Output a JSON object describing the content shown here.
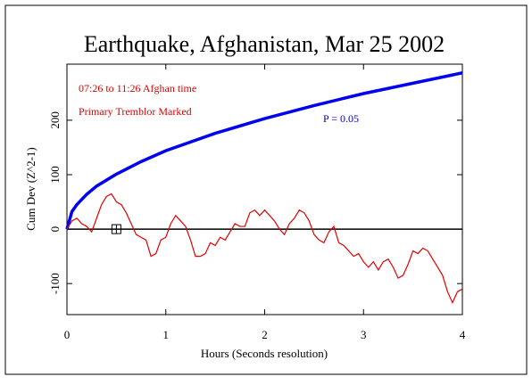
{
  "chart_data": {
    "type": "line",
    "title": "Earthquake, Afghanistan, Mar 25 2002",
    "x_label": "Hours (Seconds resolution)",
    "y_label": "Cum Dev (Z^2-1)",
    "annotations": [
      {
        "text": "07:26 to 11:26 Afghan time",
        "color": "#e00000"
      },
      {
        "text": "Primary Tremblor Marked",
        "color": "#e00000"
      },
      {
        "text": "P = 0.05",
        "color": "#0000cc"
      }
    ],
    "xlim": [
      0,
      4
    ],
    "xticks": [
      0,
      1,
      2,
      3,
      4
    ],
    "ylim": [
      -157,
      303
    ],
    "yticks": [
      -100,
      0,
      100,
      200
    ],
    "reference_line": 0,
    "marker": {
      "x": 0.5,
      "y": 0
    },
    "series": [
      {
        "color": "#0000ee",
        "x": [
          0,
          0.05,
          0.1,
          0.2,
          0.3,
          0.5,
          0.75,
          1,
          1.5,
          2,
          2.5,
          3,
          3.5,
          4
        ],
        "values": [
          0,
          32,
          45,
          64,
          79,
          101,
          124,
          144,
          176,
          203,
          227,
          249,
          268,
          287
        ]
      },
      {
        "color": "#e00000",
        "x": [
          0,
          0.05,
          0.1,
          0.15,
          0.2,
          0.25,
          0.3,
          0.35,
          0.4,
          0.45,
          0.5,
          0.55,
          0.6,
          0.65,
          0.7,
          0.75,
          0.8,
          0.85,
          0.9,
          0.95,
          1,
          1.05,
          1.1,
          1.15,
          1.2,
          1.25,
          1.3,
          1.35,
          1.4,
          1.45,
          1.5,
          1.55,
          1.6,
          1.65,
          1.7,
          1.75,
          1.8,
          1.85,
          1.9,
          1.95,
          2,
          2.05,
          2.1,
          2.15,
          2.2,
          2.25,
          2.3,
          2.35,
          2.4,
          2.45,
          2.5,
          2.55,
          2.6,
          2.65,
          2.7,
          2.75,
          2.8,
          2.85,
          2.9,
          2.95,
          3,
          3.05,
          3.1,
          3.15,
          3.2,
          3.25,
          3.3,
          3.35,
          3.4,
          3.45,
          3.5,
          3.55,
          3.6,
          3.65,
          3.7,
          3.75,
          3.8,
          3.85,
          3.9,
          3.95,
          4
        ],
        "values": [
          0,
          15,
          20,
          10,
          5,
          -5,
          20,
          45,
          60,
          65,
          50,
          45,
          30,
          10,
          -10,
          -15,
          -20,
          -50,
          -45,
          -20,
          -15,
          10,
          25,
          15,
          5,
          -20,
          -50,
          -50,
          -45,
          -25,
          -30,
          -15,
          -20,
          -5,
          10,
          5,
          5,
          30,
          35,
          25,
          35,
          25,
          15,
          0,
          -10,
          10,
          20,
          35,
          30,
          15,
          -10,
          -20,
          -25,
          -5,
          5,
          -25,
          -30,
          -40,
          -50,
          -45,
          -60,
          -70,
          -60,
          -75,
          -60,
          -55,
          -70,
          -90,
          -85,
          -65,
          -40,
          -45,
          -35,
          -40,
          -55,
          -70,
          -85,
          -115,
          -135,
          -115,
          -110
        ]
      }
    ]
  }
}
